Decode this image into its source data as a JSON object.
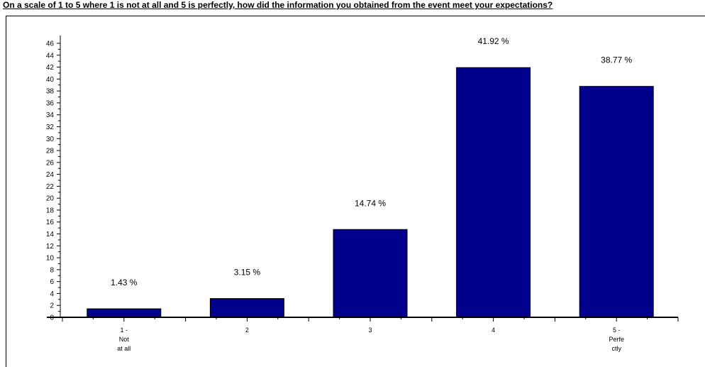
{
  "chart_data": {
    "type": "bar",
    "title": "On a scale of 1 to 5 where 1 is not at all and 5 is perfectly, how did the information you obtained from the event meet your expectations?",
    "categories": [
      [
        "1 -",
        "Not",
        "at all"
      ],
      [
        "2"
      ],
      [
        "3"
      ],
      [
        "4"
      ],
      [
        "5 -",
        "Perfe",
        "ctly"
      ]
    ],
    "values": [
      1.43,
      3.15,
      14.74,
      41.92,
      38.77
    ],
    "value_labels": [
      "1.43 %",
      "3.15 %",
      "14.74 %",
      "41.92 %",
      "38.77 %"
    ],
    "ylim": [
      0,
      46
    ],
    "ytick_step": 2,
    "bar_color": "#00008B",
    "grid": false
  }
}
